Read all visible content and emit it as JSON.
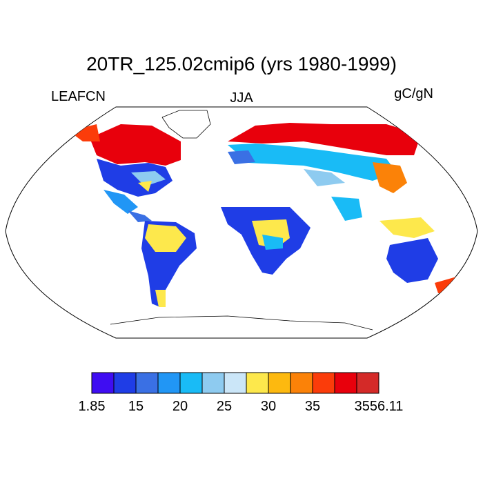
{
  "title": "20TR_125.02cmip6 (yrs 1980-1999)",
  "subtitle_left": "LEAFCN",
  "subtitle_center": "JJA",
  "subtitle_right": "gC/gN",
  "colorbar": {
    "colors": [
      "#3f0df2",
      "#1f3de6",
      "#3a70e4",
      "#2196f5",
      "#19bbf6",
      "#8ecbf0",
      "#cbe6f8",
      "#fde84c",
      "#fdb90f",
      "#fb8208",
      "#fb3c0a",
      "#e8000c",
      "#d42a28"
    ],
    "labels": [
      "1.85",
      "15",
      "20",
      "25",
      "30",
      "35",
      "3556.11"
    ]
  },
  "map": {
    "projection": "Robinson",
    "background": "#ffffff",
    "coastline_color": "#000000"
  }
}
